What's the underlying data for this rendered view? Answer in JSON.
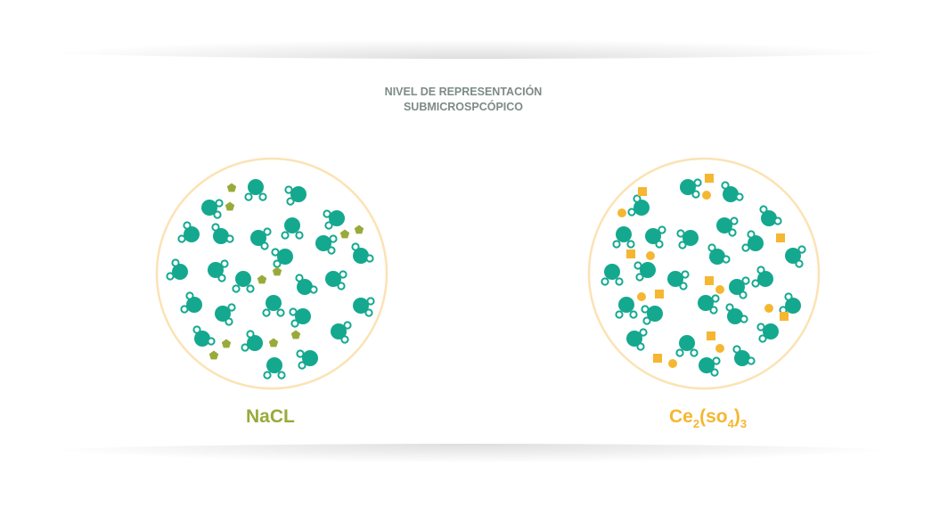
{
  "title": {
    "line1": "NIVEL DE REPRESENTACIÓN",
    "line2": "SUBMICROSPCÓPICO"
  },
  "samples": [
    {
      "label": "NaCl",
      "label_text": "NaCL",
      "ion_color": "#9aaa3a",
      "ion_shapes": [
        "pentagon"
      ]
    },
    {
      "label_parts": {
        "base": "Ce",
        "sub1": "2",
        "open": "(so",
        "sub2": "4",
        "close": ")",
        "sub3": "3"
      },
      "ion_color": "#f5b731",
      "ion_shapes": [
        "square",
        "circle"
      ]
    }
  ],
  "colors": {
    "water": "#14a88f",
    "circle_border": "#fbe3b4",
    "title": "#7d8b87"
  }
}
